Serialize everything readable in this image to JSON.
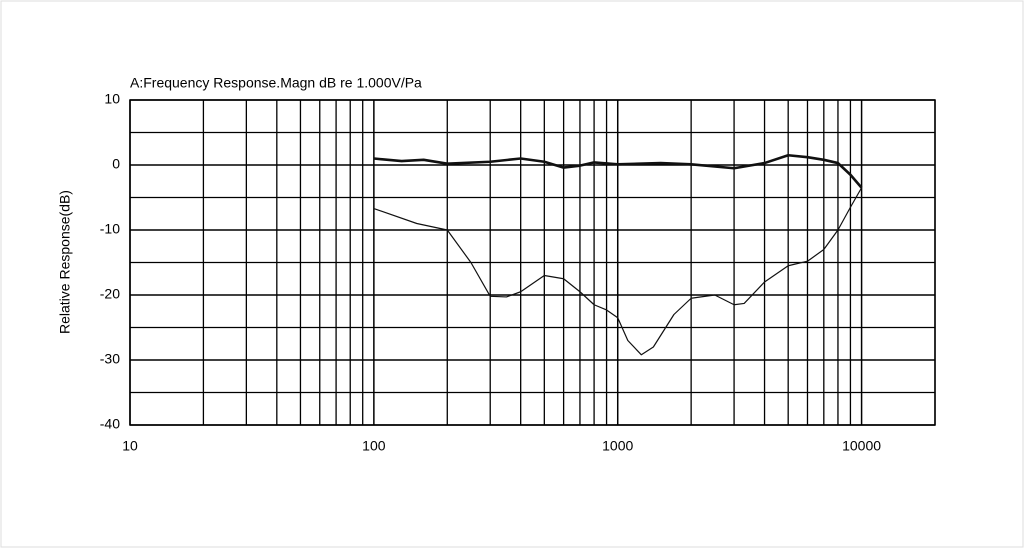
{
  "chart_data": {
    "type": "line",
    "title": "A:Frequency Response.Magn dB re 1.000V/Pa",
    "y_label": "Relative Response(dB)",
    "xscale": "log",
    "xlim": [
      10,
      20000
    ],
    "xticks": [
      10,
      100,
      1000,
      10000
    ],
    "xminor": [
      20,
      30,
      40,
      50,
      60,
      70,
      80,
      90,
      200,
      300,
      400,
      500,
      600,
      700,
      800,
      900,
      2000,
      3000,
      4000,
      5000,
      6000,
      7000,
      8000,
      9000,
      20000
    ],
    "ylim": [
      -40,
      10
    ],
    "yticks": [
      10,
      0,
      -10,
      -20,
      -30,
      -40
    ],
    "yminor": [
      5,
      -5,
      -15,
      -25,
      -35
    ],
    "grid": true,
    "series": [
      {
        "color": "#111111",
        "line_width": 2.6,
        "x": [
          100,
          130,
          160,
          200,
          300,
          400,
          500,
          600,
          700,
          800,
          1000,
          1500,
          2000,
          3000,
          4000,
          5000,
          6000,
          7000,
          8000,
          9000,
          10000
        ],
        "values": [
          1.0,
          0.6,
          0.8,
          0.2,
          0.5,
          1.0,
          0.5,
          -0.4,
          -0.1,
          0.4,
          0.1,
          0.3,
          0.1,
          -0.5,
          0.3,
          1.5,
          1.2,
          0.8,
          0.3,
          -1.5,
          -3.5
        ]
      },
      {
        "color": "#111111",
        "line_width": 1.2,
        "x": [
          100,
          150,
          200,
          250,
          300,
          350,
          400,
          500,
          600,
          700,
          800,
          900,
          1000,
          1100,
          1250,
          1400,
          1700,
          2000,
          2500,
          3000,
          3300,
          4000,
          5000,
          6000,
          7000,
          8000,
          9000,
          10000
        ],
        "values": [
          -6.7,
          -9,
          -10,
          -15,
          -20.2,
          -20.3,
          -19.5,
          -17,
          -17.5,
          -19.5,
          -21.5,
          -22.3,
          -23.5,
          -27,
          -29.2,
          -28,
          -23,
          -20.5,
          -20,
          -21.5,
          -21.3,
          -18,
          -15.5,
          -14.8,
          -13,
          -10,
          -6.5,
          -3.5
        ]
      }
    ]
  }
}
